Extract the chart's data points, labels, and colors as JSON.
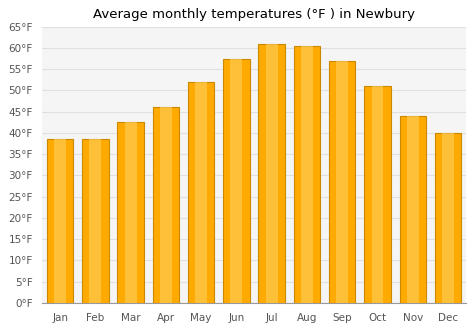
{
  "title": "Average monthly temperatures (°F ) in Newbury",
  "months": [
    "Jan",
    "Feb",
    "Mar",
    "Apr",
    "May",
    "Jun",
    "Jul",
    "Aug",
    "Sep",
    "Oct",
    "Nov",
    "Dec"
  ],
  "values": [
    38.5,
    38.5,
    42.5,
    46.0,
    52.0,
    57.5,
    61.0,
    60.5,
    57.0,
    51.0,
    44.0,
    40.0
  ],
  "bar_color": "#FFAA00",
  "bar_edge_color": "#CC8800",
  "background_color": "#ffffff",
  "plot_bg_color": "#f5f5f5",
  "ylim": [
    0,
    65
  ],
  "yticks": [
    0,
    5,
    10,
    15,
    20,
    25,
    30,
    35,
    40,
    45,
    50,
    55,
    60,
    65
  ],
  "grid_color": "#e0e0e0",
  "title_fontsize": 9.5,
  "tick_fontsize": 7.5
}
